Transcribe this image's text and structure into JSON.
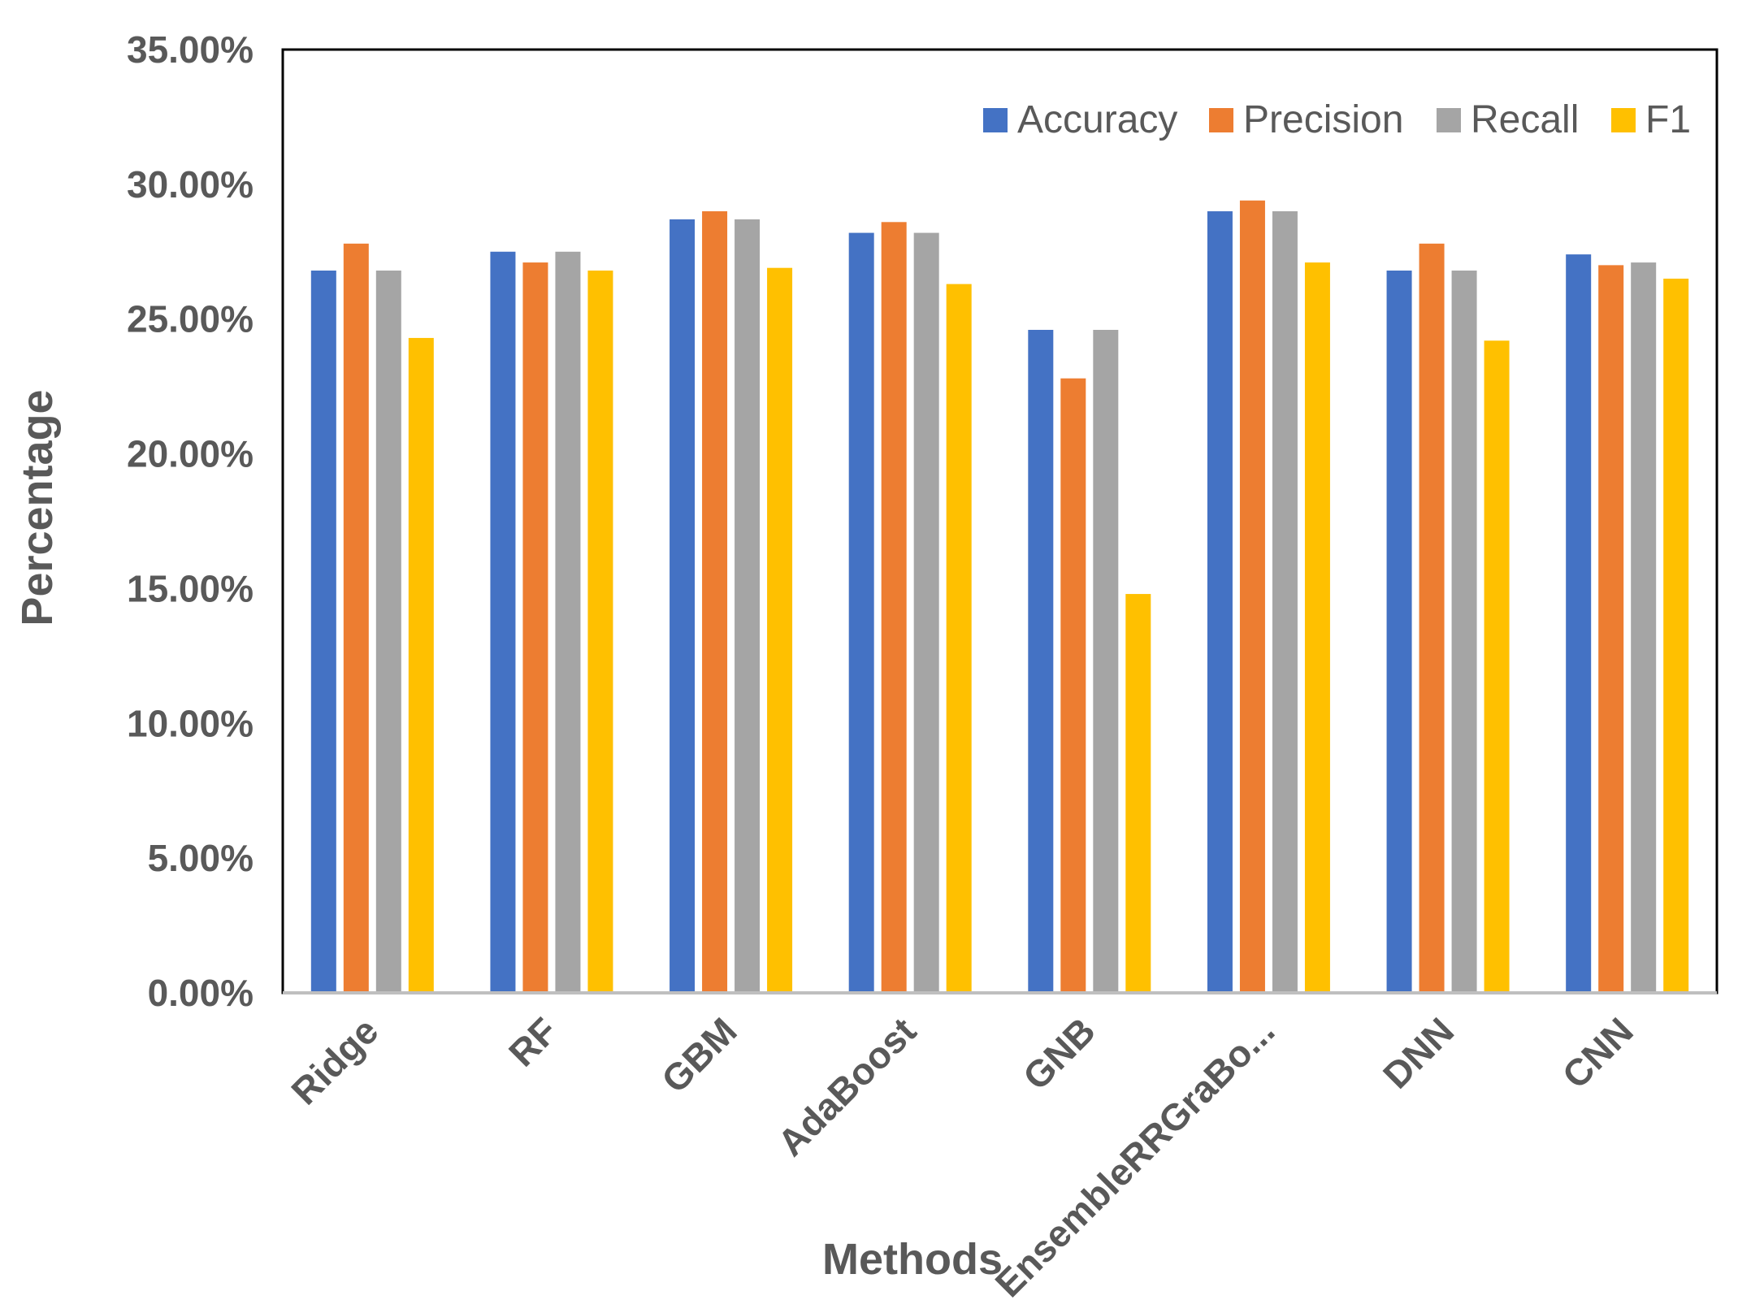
{
  "chart_data": {
    "type": "bar",
    "title": "",
    "xlabel": "Methods",
    "ylabel": "Percentage",
    "ylim": [
      0,
      35
    ],
    "yticks": [
      "0.00%",
      "5.00%",
      "10.00%",
      "15.00%",
      "20.00%",
      "25.00%",
      "30.00%",
      "35.00%"
    ],
    "legend_position": "top-right",
    "categories": [
      "Ridge",
      "RF",
      "GBM",
      "AdaBoost",
      "GNB",
      "EnsembleRRGraBo...",
      "DNN",
      "CNN"
    ],
    "series": [
      {
        "name": "Accuracy",
        "color": "#4472C4",
        "values": [
          26.8,
          27.5,
          28.7,
          28.2,
          24.6,
          29.0,
          26.8,
          27.4
        ]
      },
      {
        "name": "Precision",
        "color": "#ED7D31",
        "values": [
          27.8,
          27.1,
          29.0,
          28.6,
          22.8,
          29.4,
          27.8,
          27.0
        ]
      },
      {
        "name": "Recall",
        "color": "#A5A5A5",
        "values": [
          26.8,
          27.5,
          28.7,
          28.2,
          24.6,
          29.0,
          26.8,
          27.1
        ]
      },
      {
        "name": "F1",
        "color": "#FFC000",
        "values": [
          24.3,
          26.8,
          26.9,
          26.3,
          14.8,
          27.1,
          24.2,
          26.5
        ]
      }
    ]
  }
}
